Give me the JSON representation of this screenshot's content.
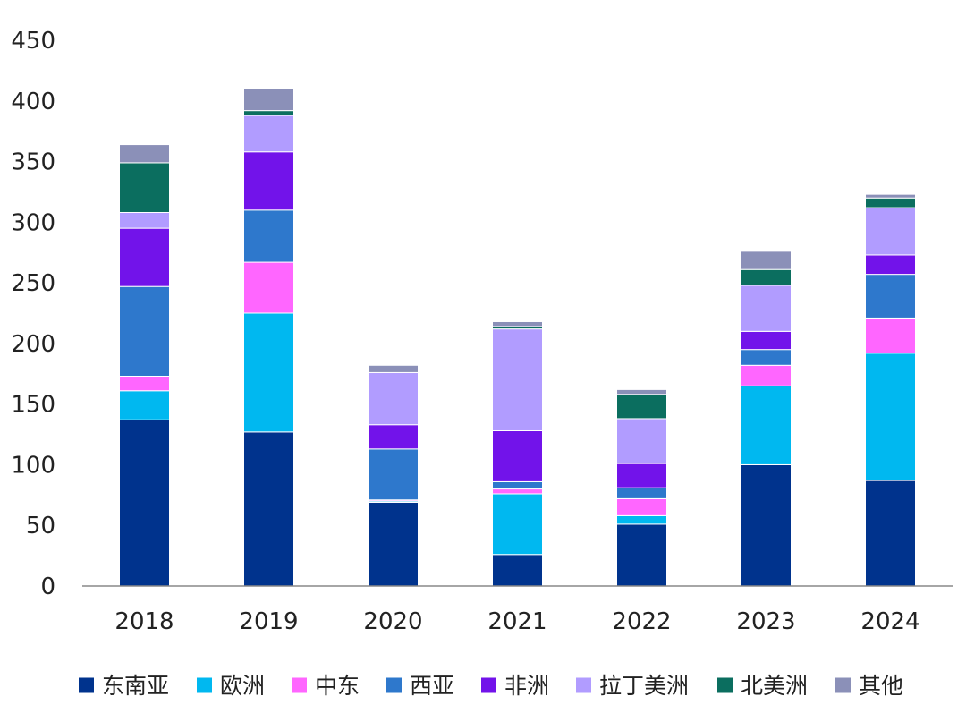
{
  "chart_data": {
    "type": "bar",
    "stacked": true,
    "categories": [
      "2018",
      "2019",
      "2020",
      "2021",
      "2022",
      "2023",
      "2024"
    ],
    "ylim": [
      0,
      450
    ],
    "yticks": [
      "0",
      "50",
      "100",
      "150",
      "200",
      "250",
      "300",
      "350",
      "400",
      "450"
    ],
    "grid": false,
    "legend_position": "bottom",
    "series": [
      {
        "name": "东南亚",
        "color": "#00338d",
        "values": [
          137,
          127,
          69,
          26,
          51,
          100,
          87
        ]
      },
      {
        "name": "欧洲",
        "color": "#00b8f0",
        "values": [
          24,
          98,
          1,
          50,
          7,
          65,
          105
        ]
      },
      {
        "name": "中东",
        "color": "#ff66ff",
        "values": [
          12,
          42,
          1,
          4,
          14,
          17,
          29
        ]
      },
      {
        "name": "西亚",
        "color": "#2e78cc",
        "values": [
          74,
          43,
          42,
          6,
          9,
          13,
          36
        ]
      },
      {
        "name": "非洲",
        "color": "#7213ea",
        "values": [
          48,
          48,
          20,
          42,
          20,
          15,
          16
        ]
      },
      {
        "name": "拉丁美洲",
        "color": "#b19cff",
        "values": [
          13,
          30,
          43,
          84,
          37,
          38,
          39
        ]
      },
      {
        "name": "北美洲",
        "color": "#0b6e5f",
        "values": [
          41,
          4,
          0,
          2,
          20,
          13,
          8
        ]
      },
      {
        "name": "其他",
        "color": "#8b90b8",
        "values": [
          15,
          18,
          6,
          4,
          4,
          15,
          3
        ]
      }
    ]
  }
}
